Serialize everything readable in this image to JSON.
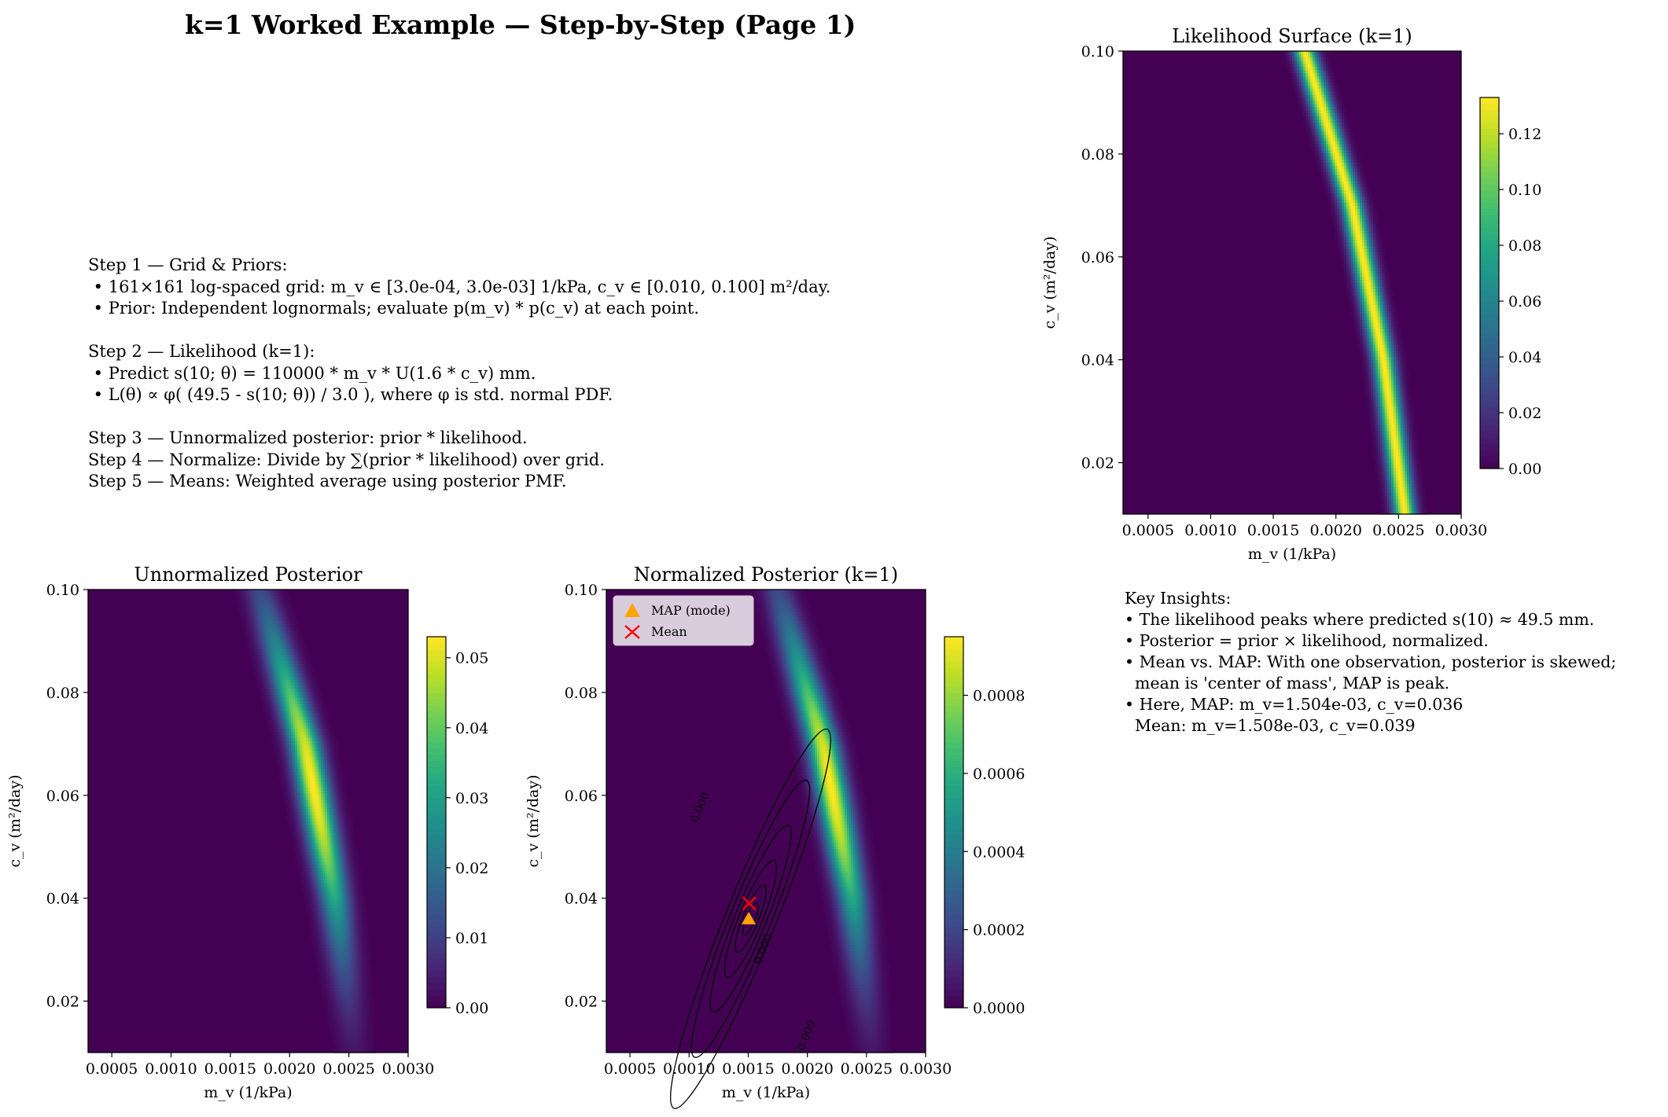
{
  "title": "k=1 Worked Example — Step-by-Step (Page 1)",
  "steps_text": [
    "Step 1 — Grid & Priors:",
    " • 161×161 log-spaced grid: m_v ∈ [3.0e-04, 3.0e-03] 1/kPa, c_v ∈ [0.010, 0.100] m²/day.",
    " • Prior: Independent lognormals; evaluate p(m_v) * p(c_v) at each point.",
    "",
    "Step 2 — Likelihood (k=1):",
    " • Predict s(10; θ) = 110000 * m_v * U(1.6 * c_v) mm.",
    " • L(θ) ∝ φ( (49.5 - s(10; θ)) / 3.0 ), where φ is std. normal PDF.",
    "",
    "Step 3 — Unnormalized posterior: prior * likelihood.",
    "Step 4 — Normalize: Divide by ∑(prior * likelihood) over grid.",
    "Step 5 — Means: Weighted average using posterior PMF."
  ],
  "insights_text": [
    "Key Insights:",
    "• The likelihood peaks where predicted s(10) ≈ 49.5 mm.",
    "• Posterior = prior × likelihood, normalized.",
    "• Mean vs. MAP: With one observation, posterior is skewed;",
    "  mean is 'center of mass', MAP is peak.",
    "• Here, MAP: m_v=1.504e-03, c_v=0.036",
    "  Mean: m_v=1.508e-03, c_v=0.039"
  ],
  "chart_data": [
    {
      "type": "heatmap",
      "id": "likelihood",
      "title": "Likelihood Surface (k=1)",
      "xlabel": "m_v (1/kPa)",
      "ylabel": "c_v (m²/day)",
      "xlim": [
        0.0003,
        0.003
      ],
      "ylim": [
        0.01,
        0.1
      ],
      "xticks": [
        0.0005,
        0.001,
        0.0015,
        0.002,
        0.0025,
        0.003
      ],
      "xtick_labels": [
        "0.0005",
        "0.0010",
        "0.0015",
        "0.0020",
        "0.0025",
        "0.0030"
      ],
      "yticks": [
        0.02,
        0.04,
        0.06,
        0.08,
        0.1
      ],
      "ytick_labels": [
        "0.02",
        "0.04",
        "0.06",
        "0.08",
        "0.10"
      ],
      "colormap": "viridis",
      "colorbar": {
        "min": 0.0,
        "max": 0.133,
        "ticks": [
          0.0,
          0.02,
          0.04,
          0.06,
          0.08,
          0.1,
          0.12
        ],
        "tick_labels": [
          "0.00",
          "0.02",
          "0.04",
          "0.06",
          "0.08",
          "0.10",
          "0.12"
        ]
      },
      "ridge": [
        {
          "c_v": 0.01,
          "m_v": 0.00255
        },
        {
          "c_v": 0.04,
          "m_v": 0.00238
        },
        {
          "c_v": 0.07,
          "m_v": 0.00213
        },
        {
          "c_v": 0.1,
          "m_v": 0.00175
        }
      ],
      "ridge_width_m_v": 6e-05,
      "peak_value": 0.133,
      "peak_c_v": 0.055,
      "peak_spread_c_v": 1.0
    },
    {
      "type": "heatmap",
      "id": "unnormalized",
      "title": "Unnormalized Posterior",
      "xlabel": "m_v (1/kPa)",
      "ylabel": "c_v (m²/day)",
      "xlim": [
        0.0003,
        0.003
      ],
      "ylim": [
        0.01,
        0.1
      ],
      "xticks": [
        0.0005,
        0.001,
        0.0015,
        0.002,
        0.0025,
        0.003
      ],
      "xtick_labels": [
        "0.0005",
        "0.0010",
        "0.0015",
        "0.0020",
        "0.0025",
        "0.0030"
      ],
      "yticks": [
        0.02,
        0.04,
        0.06,
        0.08,
        0.1
      ],
      "ytick_labels": [
        "0.02",
        "0.04",
        "0.06",
        "0.08",
        "0.10"
      ],
      "colormap": "viridis",
      "colorbar": {
        "min": 0.0,
        "max": 0.053,
        "ticks": [
          0.0,
          0.01,
          0.02,
          0.03,
          0.04,
          0.05
        ],
        "tick_labels": [
          "0.00",
          "0.01",
          "0.02",
          "0.03",
          "0.04",
          "0.05"
        ]
      },
      "ridge": [
        {
          "c_v": 0.01,
          "m_v": 0.00255
        },
        {
          "c_v": 0.04,
          "m_v": 0.00238
        },
        {
          "c_v": 0.07,
          "m_v": 0.00213
        },
        {
          "c_v": 0.1,
          "m_v": 0.00175
        }
      ],
      "ridge_width_m_v": 9e-05,
      "peak_value": 0.053,
      "peak_c_v": 0.062,
      "peak_spread_c_v": 0.022
    },
    {
      "type": "heatmap",
      "id": "normalized",
      "title": "Normalized Posterior (k=1)",
      "xlabel": "m_v (1/kPa)",
      "ylabel": "c_v (m²/day)",
      "xlim": [
        0.0003,
        0.003
      ],
      "ylim": [
        0.01,
        0.1
      ],
      "xticks": [
        0.0005,
        0.001,
        0.0015,
        0.002,
        0.0025,
        0.003
      ],
      "xtick_labels": [
        "0.0005",
        "0.0010",
        "0.0015",
        "0.0020",
        "0.0025",
        "0.0030"
      ],
      "yticks": [
        0.02,
        0.04,
        0.06,
        0.08,
        0.1
      ],
      "ytick_labels": [
        "0.02",
        "0.04",
        "0.06",
        "0.08",
        "0.10"
      ],
      "colormap": "viridis",
      "colorbar": {
        "min": 0.0,
        "max": 0.00095,
        "ticks": [
          0.0,
          0.0002,
          0.0004,
          0.0006,
          0.0008
        ],
        "tick_labels": [
          "0.0000",
          "0.0002",
          "0.0004",
          "0.0006",
          "0.0008"
        ]
      },
      "ridge": [
        {
          "c_v": 0.01,
          "m_v": 0.00255
        },
        {
          "c_v": 0.04,
          "m_v": 0.00238
        },
        {
          "c_v": 0.07,
          "m_v": 0.00213
        },
        {
          "c_v": 0.1,
          "m_v": 0.00175
        }
      ],
      "ridge_width_m_v": 9e-05,
      "peak_value": 0.00095,
      "peak_c_v": 0.062,
      "peak_spread_c_v": 0.022,
      "contour_center": {
        "m_v": 0.00152,
        "c_v": 0.036
      },
      "contour_label": "0.000",
      "markers": [
        {
          "label": "MAP (mode)",
          "m_v": 0.001504,
          "c_v": 0.036,
          "symbol": "triangle",
          "color": "#ffa500"
        },
        {
          "label": "Mean",
          "m_v": 0.001508,
          "c_v": 0.039,
          "symbol": "x",
          "color": "#ff0000"
        }
      ]
    }
  ]
}
